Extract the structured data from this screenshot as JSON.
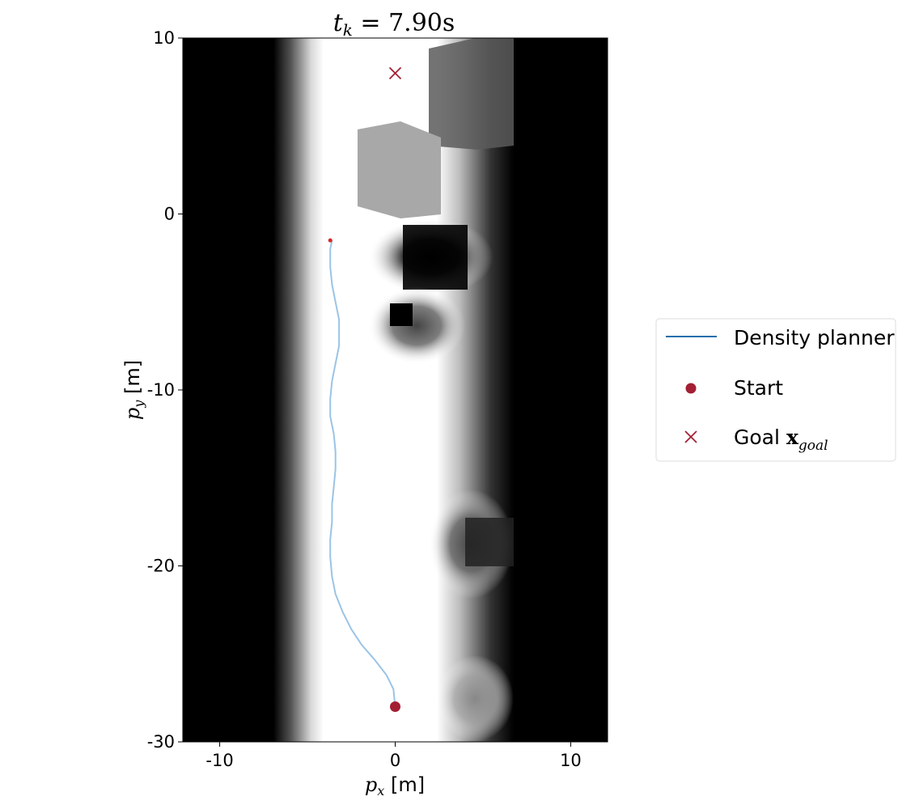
{
  "chart_data": {
    "type": "line",
    "title": "t_k = 7.90s",
    "title_parts": {
      "var": "t",
      "sub": "k",
      "rest": " = 7.90s"
    },
    "xlabel": {
      "var": "p",
      "sub": "x",
      "unit": " [m]"
    },
    "ylabel": {
      "var": "p",
      "sub": "y",
      "unit": " [m]"
    },
    "xlim": [
      -12.1,
      12.1
    ],
    "ylim": [
      -30,
      10
    ],
    "xticks": [
      -10,
      0,
      10
    ],
    "yticks": [
      10,
      0,
      -10,
      -20,
      -30
    ],
    "grid": false,
    "background": "grayscale occupancy/density map",
    "series": [
      {
        "name": "Density planner",
        "color": "#9bc4e6",
        "legend_color": "#1f6fad",
        "x": [
          0.0,
          -0.1,
          -0.5,
          -1.2,
          -1.9,
          -2.5,
          -3.0,
          -3.4,
          -3.6,
          -3.7,
          -3.7,
          -3.6,
          -3.6,
          -3.5,
          -3.4,
          -3.4,
          -3.5,
          -3.7,
          -3.7,
          -3.6,
          -3.4,
          -3.2,
          -3.2,
          -3.4,
          -3.6,
          -3.7,
          -3.7,
          -3.6
        ],
        "y": [
          -28.0,
          -27.0,
          -26.2,
          -25.3,
          -24.5,
          -23.6,
          -22.6,
          -21.6,
          -20.6,
          -19.5,
          -18.5,
          -17.5,
          -16.5,
          -15.5,
          -14.5,
          -13.5,
          -12.5,
          -11.5,
          -10.5,
          -9.5,
          -8.5,
          -7.5,
          -6.0,
          -5.0,
          -4.0,
          -3.0,
          -2.0,
          -1.5
        ]
      }
    ],
    "markers": [
      {
        "name": "Start",
        "type": "circle",
        "x": 0,
        "y": -28,
        "color": "#a31f34"
      },
      {
        "name": "Goal",
        "type": "x",
        "x": 0,
        "y": 8,
        "color": "#a31f34"
      },
      {
        "name": "Current position",
        "type": "dot",
        "x": -3.7,
        "y": -1.5,
        "color": "#d62728"
      }
    ],
    "legend": {
      "position": "center-right",
      "entries": [
        {
          "label": "Density planner",
          "symbol": "line",
          "color": "#1f6fad"
        },
        {
          "label": "Start",
          "symbol": "circle",
          "color": "#a31f34"
        },
        {
          "label": "Goal",
          "math": "x",
          "math_sub": "goal",
          "symbol": "x",
          "color": "#a31f34"
        }
      ]
    }
  }
}
